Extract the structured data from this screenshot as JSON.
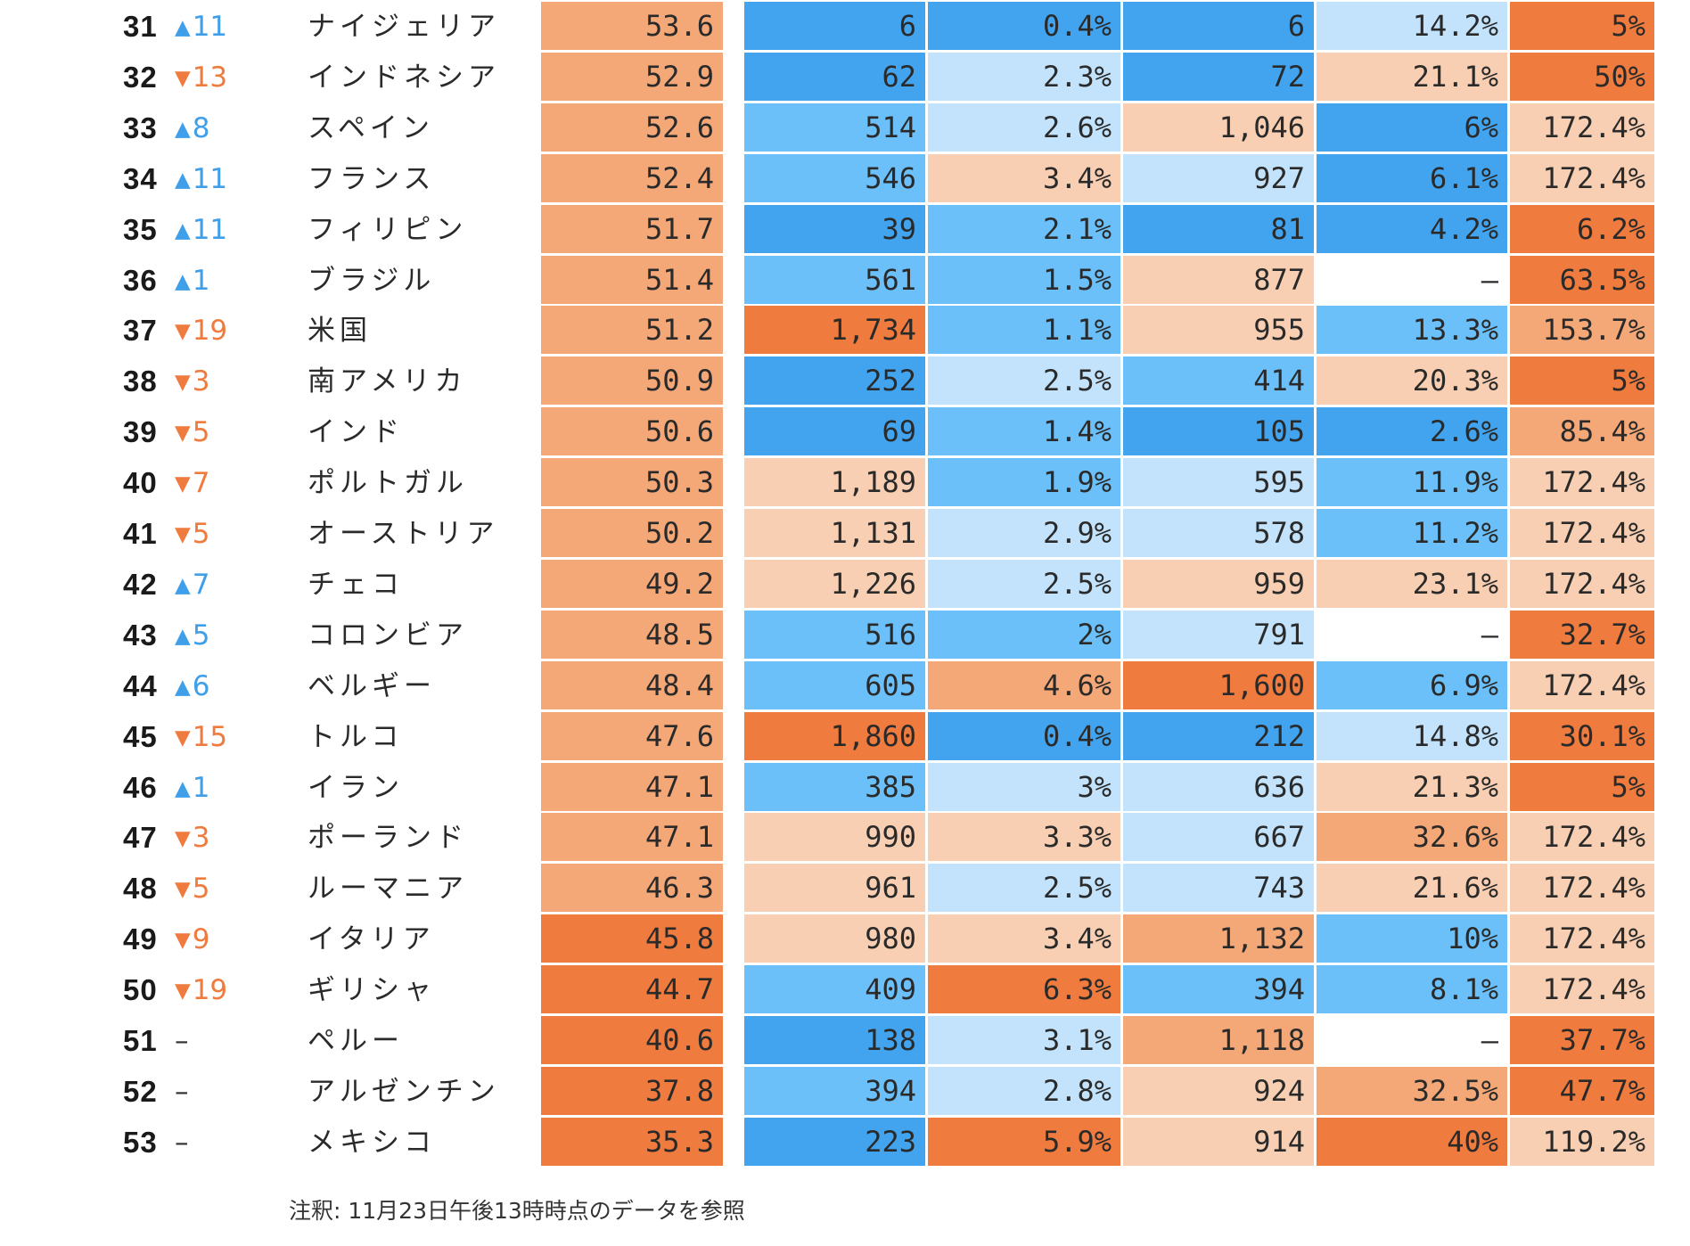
{
  "chart_data": {
    "type": "table",
    "columns": [
      "rank",
      "change",
      "country",
      "score",
      "v1",
      "v2",
      "v3",
      "v4",
      "v5"
    ],
    "rows": [
      {
        "rank": "31",
        "dir": "up",
        "change": "11",
        "country": "ナイジェリア",
        "score": "53.6",
        "v1": "6",
        "v2": "0.4%",
        "v3": "6",
        "v4": "14.2%",
        "v5": "5%"
      },
      {
        "rank": "32",
        "dir": "down",
        "change": "13",
        "country": "インドネシア",
        "score": "52.9",
        "v1": "62",
        "v2": "2.3%",
        "v3": "72",
        "v4": "21.1%",
        "v5": "50%"
      },
      {
        "rank": "33",
        "dir": "up",
        "change": "8",
        "country": "スペイン",
        "score": "52.6",
        "v1": "514",
        "v2": "2.6%",
        "v3": "1,046",
        "v4": "6%",
        "v5": "172.4%"
      },
      {
        "rank": "34",
        "dir": "up",
        "change": "11",
        "country": "フランス",
        "score": "52.4",
        "v1": "546",
        "v2": "3.4%",
        "v3": "927",
        "v4": "6.1%",
        "v5": "172.4%"
      },
      {
        "rank": "35",
        "dir": "up",
        "change": "11",
        "country": "フィリピン",
        "score": "51.7",
        "v1": "39",
        "v2": "2.1%",
        "v3": "81",
        "v4": "4.2%",
        "v5": "6.2%"
      },
      {
        "rank": "36",
        "dir": "up",
        "change": "1",
        "country": "ブラジル",
        "score": "51.4",
        "v1": "561",
        "v2": "1.5%",
        "v3": "877",
        "v4": "–",
        "v5": "63.5%"
      },
      {
        "rank": "37",
        "dir": "down",
        "change": "19",
        "country": "米国",
        "score": "51.2",
        "v1": "1,734",
        "v2": "1.1%",
        "v3": "955",
        "v4": "13.3%",
        "v5": "153.7%"
      },
      {
        "rank": "38",
        "dir": "down",
        "change": "3",
        "country": "南アメリカ",
        "score": "50.9",
        "v1": "252",
        "v2": "2.5%",
        "v3": "414",
        "v4": "20.3%",
        "v5": "5%"
      },
      {
        "rank": "39",
        "dir": "down",
        "change": "5",
        "country": "インド",
        "score": "50.6",
        "v1": "69",
        "v2": "1.4%",
        "v3": "105",
        "v4": "2.6%",
        "v5": "85.4%"
      },
      {
        "rank": "40",
        "dir": "down",
        "change": "7",
        "country": "ポルトガル",
        "score": "50.3",
        "v1": "1,189",
        "v2": "1.9%",
        "v3": "595",
        "v4": "11.9%",
        "v5": "172.4%"
      },
      {
        "rank": "41",
        "dir": "down",
        "change": "5",
        "country": "オーストリア",
        "score": "50.2",
        "v1": "1,131",
        "v2": "2.9%",
        "v3": "578",
        "v4": "11.2%",
        "v5": "172.4%"
      },
      {
        "rank": "42",
        "dir": "up",
        "change": "7",
        "country": "チェコ",
        "score": "49.2",
        "v1": "1,226",
        "v2": "2.5%",
        "v3": "959",
        "v4": "23.1%",
        "v5": "172.4%"
      },
      {
        "rank": "43",
        "dir": "up",
        "change": "5",
        "country": "コロンビア",
        "score": "48.5",
        "v1": "516",
        "v2": "2%",
        "v3": "791",
        "v4": "–",
        "v5": "32.7%"
      },
      {
        "rank": "44",
        "dir": "up",
        "change": "6",
        "country": "ベルギー",
        "score": "48.4",
        "v1": "605",
        "v2": "4.6%",
        "v3": "1,600",
        "v4": "6.9%",
        "v5": "172.4%"
      },
      {
        "rank": "45",
        "dir": "down",
        "change": "15",
        "country": "トルコ",
        "score": "47.6",
        "v1": "1,860",
        "v2": "0.4%",
        "v3": "212",
        "v4": "14.8%",
        "v5": "30.1%"
      },
      {
        "rank": "46",
        "dir": "up",
        "change": "1",
        "country": "イラン",
        "score": "47.1",
        "v1": "385",
        "v2": "3%",
        "v3": "636",
        "v4": "21.3%",
        "v5": "5%"
      },
      {
        "rank": "47",
        "dir": "down",
        "change": "3",
        "country": "ポーランド",
        "score": "47.1",
        "v1": "990",
        "v2": "3.3%",
        "v3": "667",
        "v4": "32.6%",
        "v5": "172.4%"
      },
      {
        "rank": "48",
        "dir": "down",
        "change": "5",
        "country": "ルーマニア",
        "score": "46.3",
        "v1": "961",
        "v2": "2.5%",
        "v3": "743",
        "v4": "21.6%",
        "v5": "172.4%"
      },
      {
        "rank": "49",
        "dir": "down",
        "change": "9",
        "country": "イタリア",
        "score": "45.8",
        "v1": "980",
        "v2": "3.4%",
        "v3": "1,132",
        "v4": "10%",
        "v5": "172.4%"
      },
      {
        "rank": "50",
        "dir": "down",
        "change": "19",
        "country": "ギリシャ",
        "score": "44.7",
        "v1": "409",
        "v2": "6.3%",
        "v3": "394",
        "v4": "8.1%",
        "v5": "172.4%"
      },
      {
        "rank": "51",
        "dir": "flat",
        "change": "–",
        "country": "ペルー",
        "score": "40.6",
        "v1": "138",
        "v2": "3.1%",
        "v3": "1,118",
        "v4": "–",
        "v5": "37.7%"
      },
      {
        "rank": "52",
        "dir": "flat",
        "change": "–",
        "country": "アルゼンチン",
        "score": "37.8",
        "v1": "394",
        "v2": "2.8%",
        "v3": "924",
        "v4": "32.5%",
        "v5": "47.7%"
      },
      {
        "rank": "53",
        "dir": "flat",
        "change": "–",
        "country": "メキシコ",
        "score": "35.3",
        "v1": "223",
        "v2": "5.9%",
        "v3": "914",
        "v4": "40%",
        "v5": "119.2%"
      }
    ],
    "cell_colors": [
      {
        "score": "#f4a877",
        "v1": "#42a4ef",
        "v2": "#42a4ef",
        "v3": "#42a4ef",
        "v4": "#c2e3fb",
        "v5": "#ef7b3e"
      },
      {
        "score": "#f4a877",
        "v1": "#42a4ef",
        "v2": "#c2e3fb",
        "v3": "#42a4ef",
        "v4": "#f8cfb2",
        "v5": "#ef7b3e"
      },
      {
        "score": "#f4a877",
        "v1": "#6cc0f9",
        "v2": "#c2e3fb",
        "v3": "#f8cfb2",
        "v4": "#42a4ef",
        "v5": "#f8cfb2"
      },
      {
        "score": "#f4a877",
        "v1": "#6cc0f9",
        "v2": "#f8cfb2",
        "v3": "#c2e3fb",
        "v4": "#42a4ef",
        "v5": "#f8cfb2"
      },
      {
        "score": "#f4a877",
        "v1": "#42a4ef",
        "v2": "#6cc0f9",
        "v3": "#42a4ef",
        "v4": "#42a4ef",
        "v5": "#ef7b3e"
      },
      {
        "score": "#f4a877",
        "v1": "#6cc0f9",
        "v2": "#6cc0f9",
        "v3": "#f8cfb2",
        "v4": "#ffffff",
        "v5": "#ef7b3e"
      },
      {
        "score": "#f4a877",
        "v1": "#ef7b3e",
        "v2": "#6cc0f9",
        "v3": "#f8cfb2",
        "v4": "#6cc0f9",
        "v5": "#f4a877"
      },
      {
        "score": "#f4a877",
        "v1": "#42a4ef",
        "v2": "#c2e3fb",
        "v3": "#6cc0f9",
        "v4": "#f8cfb2",
        "v5": "#ef7b3e"
      },
      {
        "score": "#f4a877",
        "v1": "#42a4ef",
        "v2": "#6cc0f9",
        "v3": "#42a4ef",
        "v4": "#42a4ef",
        "v5": "#f4a877"
      },
      {
        "score": "#f4a877",
        "v1": "#f8cfb2",
        "v2": "#6cc0f9",
        "v3": "#c2e3fb",
        "v4": "#6cc0f9",
        "v5": "#f8cfb2"
      },
      {
        "score": "#f4a877",
        "v1": "#f8cfb2",
        "v2": "#c2e3fb",
        "v3": "#c2e3fb",
        "v4": "#6cc0f9",
        "v5": "#f8cfb2"
      },
      {
        "score": "#f4a877",
        "v1": "#f8cfb2",
        "v2": "#c2e3fb",
        "v3": "#f8cfb2",
        "v4": "#f8cfb2",
        "v5": "#f8cfb2"
      },
      {
        "score": "#f4a877",
        "v1": "#6cc0f9",
        "v2": "#6cc0f9",
        "v3": "#c2e3fb",
        "v4": "#ffffff",
        "v5": "#ef7b3e"
      },
      {
        "score": "#f4a877",
        "v1": "#6cc0f9",
        "v2": "#f4a877",
        "v3": "#ef7b3e",
        "v4": "#6cc0f9",
        "v5": "#f8cfb2"
      },
      {
        "score": "#f4a877",
        "v1": "#ef7b3e",
        "v2": "#42a4ef",
        "v3": "#42a4ef",
        "v4": "#c2e3fb",
        "v5": "#ef7b3e"
      },
      {
        "score": "#f4a877",
        "v1": "#6cc0f9",
        "v2": "#c2e3fb",
        "v3": "#c2e3fb",
        "v4": "#f8cfb2",
        "v5": "#ef7b3e"
      },
      {
        "score": "#f4a877",
        "v1": "#f8cfb2",
        "v2": "#f8cfb2",
        "v3": "#c2e3fb",
        "v4": "#f4a877",
        "v5": "#f8cfb2"
      },
      {
        "score": "#f4a877",
        "v1": "#f8cfb2",
        "v2": "#c2e3fb",
        "v3": "#c2e3fb",
        "v4": "#f8cfb2",
        "v5": "#f8cfb2"
      },
      {
        "score": "#ef7b3e",
        "v1": "#f8cfb2",
        "v2": "#f8cfb2",
        "v3": "#f4a877",
        "v4": "#6cc0f9",
        "v5": "#f8cfb2"
      },
      {
        "score": "#ef7b3e",
        "v1": "#6cc0f9",
        "v2": "#ef7b3e",
        "v3": "#6cc0f9",
        "v4": "#6cc0f9",
        "v5": "#f8cfb2"
      },
      {
        "score": "#ef7b3e",
        "v1": "#42a4ef",
        "v2": "#c2e3fb",
        "v3": "#f4a877",
        "v4": "#ffffff",
        "v5": "#ef7b3e"
      },
      {
        "score": "#ef7b3e",
        "v1": "#6cc0f9",
        "v2": "#c2e3fb",
        "v3": "#f8cfb2",
        "v4": "#f4a877",
        "v5": "#ef7b3e"
      },
      {
        "score": "#ef7b3e",
        "v1": "#42a4ef",
        "v2": "#ef7b3e",
        "v3": "#f8cfb2",
        "v4": "#ef7b3e",
        "v5": "#f8cfb2"
      }
    ],
    "arrow_glyphs": {
      "up": "▲",
      "down": "▼",
      "flat": ""
    },
    "change_colors": {
      "up": "#3f9fe8",
      "down": "#ef7b3e",
      "flat": "#333333"
    }
  },
  "footnote": "注釈: 11月23日午後13時時点のデータを参照"
}
